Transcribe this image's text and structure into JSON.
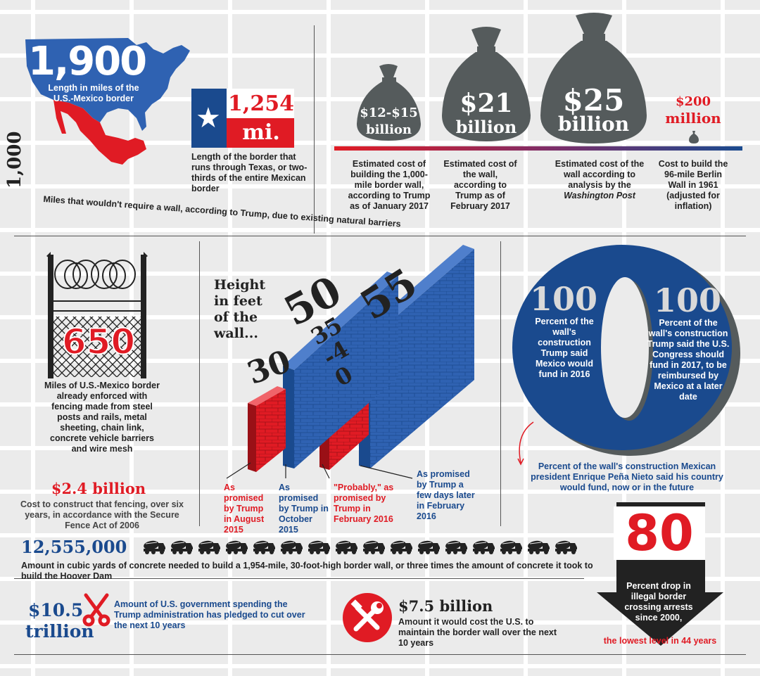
{
  "colors": {
    "red": "#e01b24",
    "navy": "#1a4a8e",
    "blue": "#2f62b2",
    "gray": "#555b5c",
    "dark": "#222222"
  },
  "border": {
    "miles": "1,900",
    "miles_caption": "Length in miles of the U.S.-Mexico border",
    "texas_value": "1,254",
    "texas_unit": "mi.",
    "texas_caption": "Length of the border that runs through Texas, or two-thirds of the entire Mexican border",
    "no_wall_miles": "1,000",
    "no_wall_caption": "Miles that wouldn't require a wall, according to Trump, due to existing natural barriers"
  },
  "costs": [
    {
      "amount_line1": "$12-$15",
      "amount_line2": "billion",
      "caption": "Estimated cost of building the 1,000-mile border wall, according to Trump as of January 2017"
    },
    {
      "amount_line1": "$21",
      "amount_line2": "billion",
      "caption": "Estimated cost of the wall, according to Trump as of February 2017"
    },
    {
      "amount_line1": "$25",
      "amount_line2": "billion",
      "caption_a": "Estimated cost of the wall according to analysis by the ",
      "caption_b": "Washington Post"
    },
    {
      "amount_line1": "$200",
      "amount_line2": "million",
      "caption": "Cost to build the 96-mile Berlin Wall in 1961 (adjusted for inflation)"
    }
  ],
  "fencing": {
    "miles": "650",
    "caption": "Miles of U.S.-Mexico border already enforced with fencing made from steel posts and rails, metal sheeting, chain link, concrete vehicle barriers and wire mesh",
    "cost": "$2.4 billion",
    "cost_caption": "Cost to construct that fencing, over six years, in accordance with the Secure Fence Act of 2006"
  },
  "height": {
    "title": "Height in feet of the wall...",
    "walls": [
      {
        "value": "30",
        "caption": "As promised by Trump in August 2015",
        "color": "#e01b24"
      },
      {
        "value": "50",
        "caption": "As promised by Trump in October 2015",
        "color": "#2f62b2"
      },
      {
        "value": "35-40",
        "caption": "\"Probably,\" as promised by Trump in February 2016",
        "color": "#e01b24"
      },
      {
        "value": "55",
        "caption": "As promised by Trump a few days later in February 2016",
        "color": "#2f62b2"
      }
    ]
  },
  "percent": {
    "left_value": "100",
    "left_caption": "Percent of the wall's construction Trump said Mexico would fund in 2016",
    "right_value": "100",
    "right_caption": "Percent of the wall's construction Trump said the U.S. Congress should fund in 2017, to be reimbursed by Mexico at a later date",
    "zero_value": "0",
    "zero_caption": "Percent of the wall's construction Mexican president Enrique Peña Nieto said his country would fund, now or in the future"
  },
  "concrete": {
    "value": "12,555,000",
    "truck_count": 16,
    "caption": "Amount in cubic yards of concrete needed to build a 1,954-mile, 30-foot-high border wall, or three times the amount of concrete it took to build the Hoover Dam"
  },
  "spending": {
    "value_line1": "$10.5",
    "value_line2": "trillion",
    "caption": "Amount of U.S. government spending the Trump administration has pledged to cut over the next 10 years"
  },
  "maintenance": {
    "value": "$7.5 billion",
    "caption": "Amount it would cost the U.S. to maintain the border wall over the next 10 years"
  },
  "arrests": {
    "value": "80",
    "caption": "Percent drop in illegal border crossing arrests since 2000,",
    "caption2": "the lowest level in 44 years"
  }
}
